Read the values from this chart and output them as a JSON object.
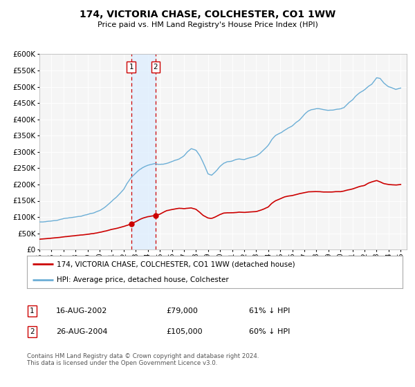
{
  "title": "174, VICTORIA CHASE, COLCHESTER, CO1 1WW",
  "subtitle": "Price paid vs. HM Land Registry's House Price Index (HPI)",
  "hpi_color": "#6baed6",
  "price_color": "#cc0000",
  "marker_color": "#cc0000",
  "bg_color": "#ffffff",
  "plot_bg_color": "#f5f5f5",
  "grid_color": "#ffffff",
  "vspan_color": "#ddeeff",
  "vline_color": "#cc0000",
  "ylim": [
    0,
    600000
  ],
  "yticks": [
    0,
    50000,
    100000,
    150000,
    200000,
    250000,
    300000,
    350000,
    400000,
    450000,
    500000,
    550000,
    600000
  ],
  "xlim_start": 1995.0,
  "xlim_end": 2025.5,
  "sale1_x": 2002.622,
  "sale1_y": 79000,
  "sale2_x": 2004.653,
  "sale2_y": 105000,
  "legend_red_label": "174, VICTORIA CHASE, COLCHESTER, CO1 1WW (detached house)",
  "legend_blue_label": "HPI: Average price, detached house, Colchester",
  "table_row1": [
    "1",
    "16-AUG-2002",
    "£79,000",
    "61% ↓ HPI"
  ],
  "table_row2": [
    "2",
    "26-AUG-2004",
    "£105,000",
    "60% ↓ HPI"
  ],
  "footnote": "Contains HM Land Registry data © Crown copyright and database right 2024.\nThis data is licensed under the Open Government Licence v3.0.",
  "hpi_keypoints": [
    [
      1995.0,
      85000
    ],
    [
      1995.5,
      86000
    ],
    [
      1996.0,
      88000
    ],
    [
      1996.5,
      90000
    ],
    [
      1997.0,
      95000
    ],
    [
      1997.5,
      98000
    ],
    [
      1998.0,
      100000
    ],
    [
      1998.5,
      103000
    ],
    [
      1999.0,
      108000
    ],
    [
      1999.5,
      113000
    ],
    [
      2000.0,
      120000
    ],
    [
      2000.5,
      132000
    ],
    [
      2001.0,
      148000
    ],
    [
      2001.5,
      165000
    ],
    [
      2002.0,
      185000
    ],
    [
      2002.3,
      205000
    ],
    [
      2002.6,
      220000
    ],
    [
      2003.0,
      235000
    ],
    [
      2003.3,
      245000
    ],
    [
      2003.6,
      252000
    ],
    [
      2004.0,
      258000
    ],
    [
      2004.3,
      262000
    ],
    [
      2004.6,
      264000
    ],
    [
      2005.0,
      261000
    ],
    [
      2005.3,
      262000
    ],
    [
      2005.6,
      265000
    ],
    [
      2006.0,
      270000
    ],
    [
      2006.3,
      274000
    ],
    [
      2006.6,
      278000
    ],
    [
      2007.0,
      288000
    ],
    [
      2007.3,
      300000
    ],
    [
      2007.6,
      310000
    ],
    [
      2008.0,
      305000
    ],
    [
      2008.3,
      290000
    ],
    [
      2008.6,
      268000
    ],
    [
      2009.0,
      232000
    ],
    [
      2009.3,
      228000
    ],
    [
      2009.6,
      238000
    ],
    [
      2010.0,
      255000
    ],
    [
      2010.3,
      265000
    ],
    [
      2010.6,
      270000
    ],
    [
      2011.0,
      272000
    ],
    [
      2011.3,
      276000
    ],
    [
      2011.6,
      278000
    ],
    [
      2012.0,
      276000
    ],
    [
      2012.3,
      280000
    ],
    [
      2012.6,
      283000
    ],
    [
      2013.0,
      288000
    ],
    [
      2013.3,
      295000
    ],
    [
      2013.6,
      305000
    ],
    [
      2014.0,
      320000
    ],
    [
      2014.3,
      338000
    ],
    [
      2014.6,
      350000
    ],
    [
      2015.0,
      358000
    ],
    [
      2015.3,
      365000
    ],
    [
      2015.6,
      372000
    ],
    [
      2016.0,
      380000
    ],
    [
      2016.3,
      390000
    ],
    [
      2016.6,
      398000
    ],
    [
      2017.0,
      415000
    ],
    [
      2017.3,
      425000
    ],
    [
      2017.6,
      430000
    ],
    [
      2018.0,
      432000
    ],
    [
      2018.3,
      432000
    ],
    [
      2018.6,
      430000
    ],
    [
      2019.0,
      428000
    ],
    [
      2019.3,
      428000
    ],
    [
      2019.6,
      430000
    ],
    [
      2020.0,
      432000
    ],
    [
      2020.3,
      436000
    ],
    [
      2020.6,
      448000
    ],
    [
      2021.0,
      460000
    ],
    [
      2021.3,
      472000
    ],
    [
      2021.6,
      482000
    ],
    [
      2022.0,
      490000
    ],
    [
      2022.3,
      500000
    ],
    [
      2022.6,
      508000
    ],
    [
      2023.0,
      528000
    ],
    [
      2023.3,
      525000
    ],
    [
      2023.6,
      512000
    ],
    [
      2024.0,
      500000
    ],
    [
      2024.3,
      496000
    ],
    [
      2024.6,
      492000
    ],
    [
      2025.0,
      496000
    ]
  ],
  "price_keypoints": [
    [
      1995.0,
      32000
    ],
    [
      1995.5,
      33500
    ],
    [
      1996.0,
      35000
    ],
    [
      1996.5,
      37000
    ],
    [
      1997.0,
      39000
    ],
    [
      1997.5,
      41000
    ],
    [
      1998.0,
      43000
    ],
    [
      1998.5,
      45000
    ],
    [
      1999.0,
      47000
    ],
    [
      1999.5,
      49500
    ],
    [
      2000.0,
      53000
    ],
    [
      2000.5,
      57000
    ],
    [
      2001.0,
      62000
    ],
    [
      2001.5,
      66000
    ],
    [
      2002.0,
      71000
    ],
    [
      2002.622,
      79000
    ],
    [
      2003.0,
      86000
    ],
    [
      2003.3,
      92000
    ],
    [
      2003.6,
      97000
    ],
    [
      2004.0,
      101000
    ],
    [
      2004.653,
      105000
    ],
    [
      2005.0,
      109000
    ],
    [
      2005.3,
      115000
    ],
    [
      2005.6,
      120000
    ],
    [
      2006.0,
      123000
    ],
    [
      2006.3,
      125000
    ],
    [
      2006.6,
      127000
    ],
    [
      2007.0,
      126000
    ],
    [
      2007.3,
      127000
    ],
    [
      2007.6,
      128000
    ],
    [
      2008.0,
      124000
    ],
    [
      2008.3,
      115000
    ],
    [
      2008.6,
      105000
    ],
    [
      2009.0,
      97000
    ],
    [
      2009.3,
      96000
    ],
    [
      2009.6,
      100000
    ],
    [
      2010.0,
      108000
    ],
    [
      2010.3,
      112000
    ],
    [
      2010.6,
      113000
    ],
    [
      2011.0,
      113000
    ],
    [
      2011.3,
      114000
    ],
    [
      2011.6,
      115000
    ],
    [
      2012.0,
      114000
    ],
    [
      2012.3,
      115000
    ],
    [
      2012.6,
      116000
    ],
    [
      2013.0,
      117000
    ],
    [
      2013.3,
      120000
    ],
    [
      2013.6,
      124000
    ],
    [
      2014.0,
      131000
    ],
    [
      2014.3,
      142000
    ],
    [
      2014.6,
      150000
    ],
    [
      2015.0,
      156000
    ],
    [
      2015.3,
      161000
    ],
    [
      2015.6,
      164000
    ],
    [
      2016.0,
      166000
    ],
    [
      2016.3,
      169000
    ],
    [
      2016.6,
      172000
    ],
    [
      2017.0,
      175000
    ],
    [
      2017.3,
      177000
    ],
    [
      2017.6,
      178000
    ],
    [
      2018.0,
      178000
    ],
    [
      2018.3,
      178000
    ],
    [
      2018.6,
      177000
    ],
    [
      2019.0,
      177000
    ],
    [
      2019.3,
      177000
    ],
    [
      2019.6,
      178000
    ],
    [
      2020.0,
      178000
    ],
    [
      2020.3,
      180000
    ],
    [
      2020.6,
      183000
    ],
    [
      2021.0,
      186000
    ],
    [
      2021.3,
      190000
    ],
    [
      2021.6,
      194000
    ],
    [
      2022.0,
      197000
    ],
    [
      2022.3,
      204000
    ],
    [
      2022.6,
      208000
    ],
    [
      2023.0,
      212000
    ],
    [
      2023.3,
      208000
    ],
    [
      2023.6,
      203000
    ],
    [
      2024.0,
      200000
    ],
    [
      2024.3,
      199000
    ],
    [
      2024.6,
      198000
    ],
    [
      2025.0,
      200000
    ]
  ]
}
